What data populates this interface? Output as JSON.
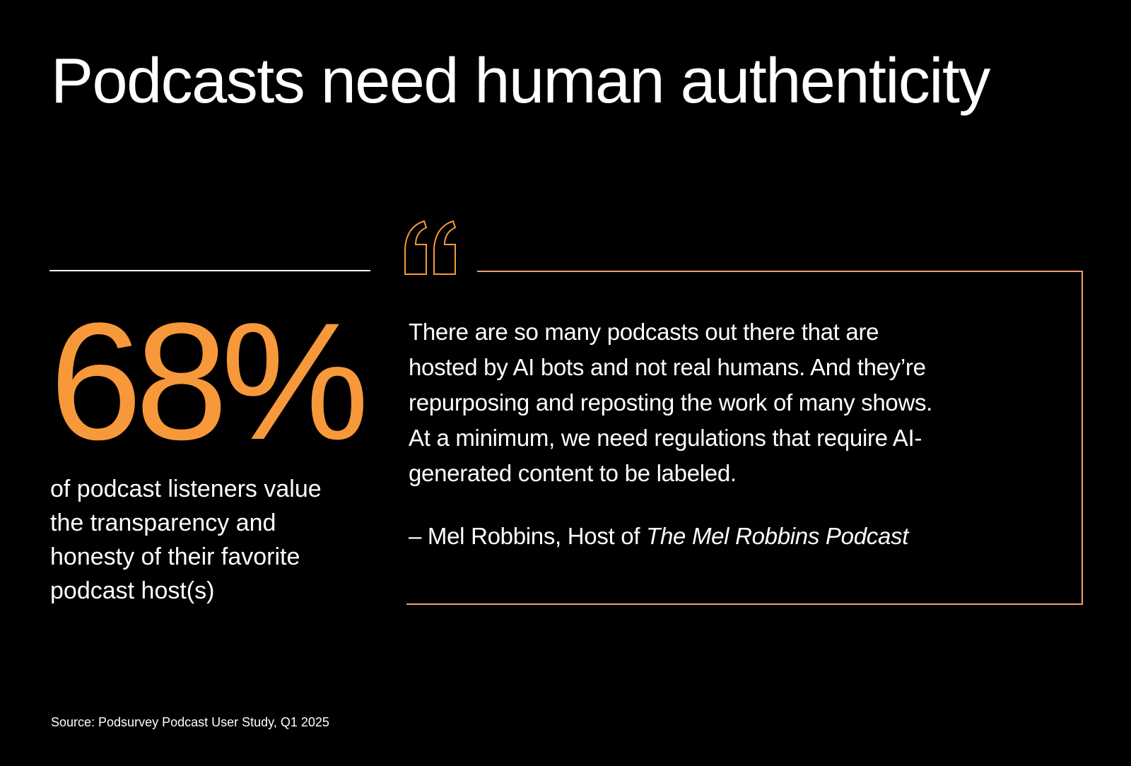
{
  "title": "Podcasts need human authenticity",
  "stat": {
    "value": "68%",
    "description_lines": [
      "of podcast listeners value",
      "the transparency and",
      "honesty of their favorite",
      "podcast host(s)"
    ]
  },
  "quote": {
    "lines": [
      "There are so many podcasts out there that are",
      "hosted by AI bots and not real humans. And they’re",
      "repurposing and reposting the work of many shows.",
      "At a minimum, we need regulations that require AI-",
      "generated content to be labeled."
    ],
    "attribution": "– Mel Robbins, Host of",
    "work": "The Mel Robbins Podcast"
  },
  "source": "Source: Podsurvey Podcast User Study, Q1 2025"
}
